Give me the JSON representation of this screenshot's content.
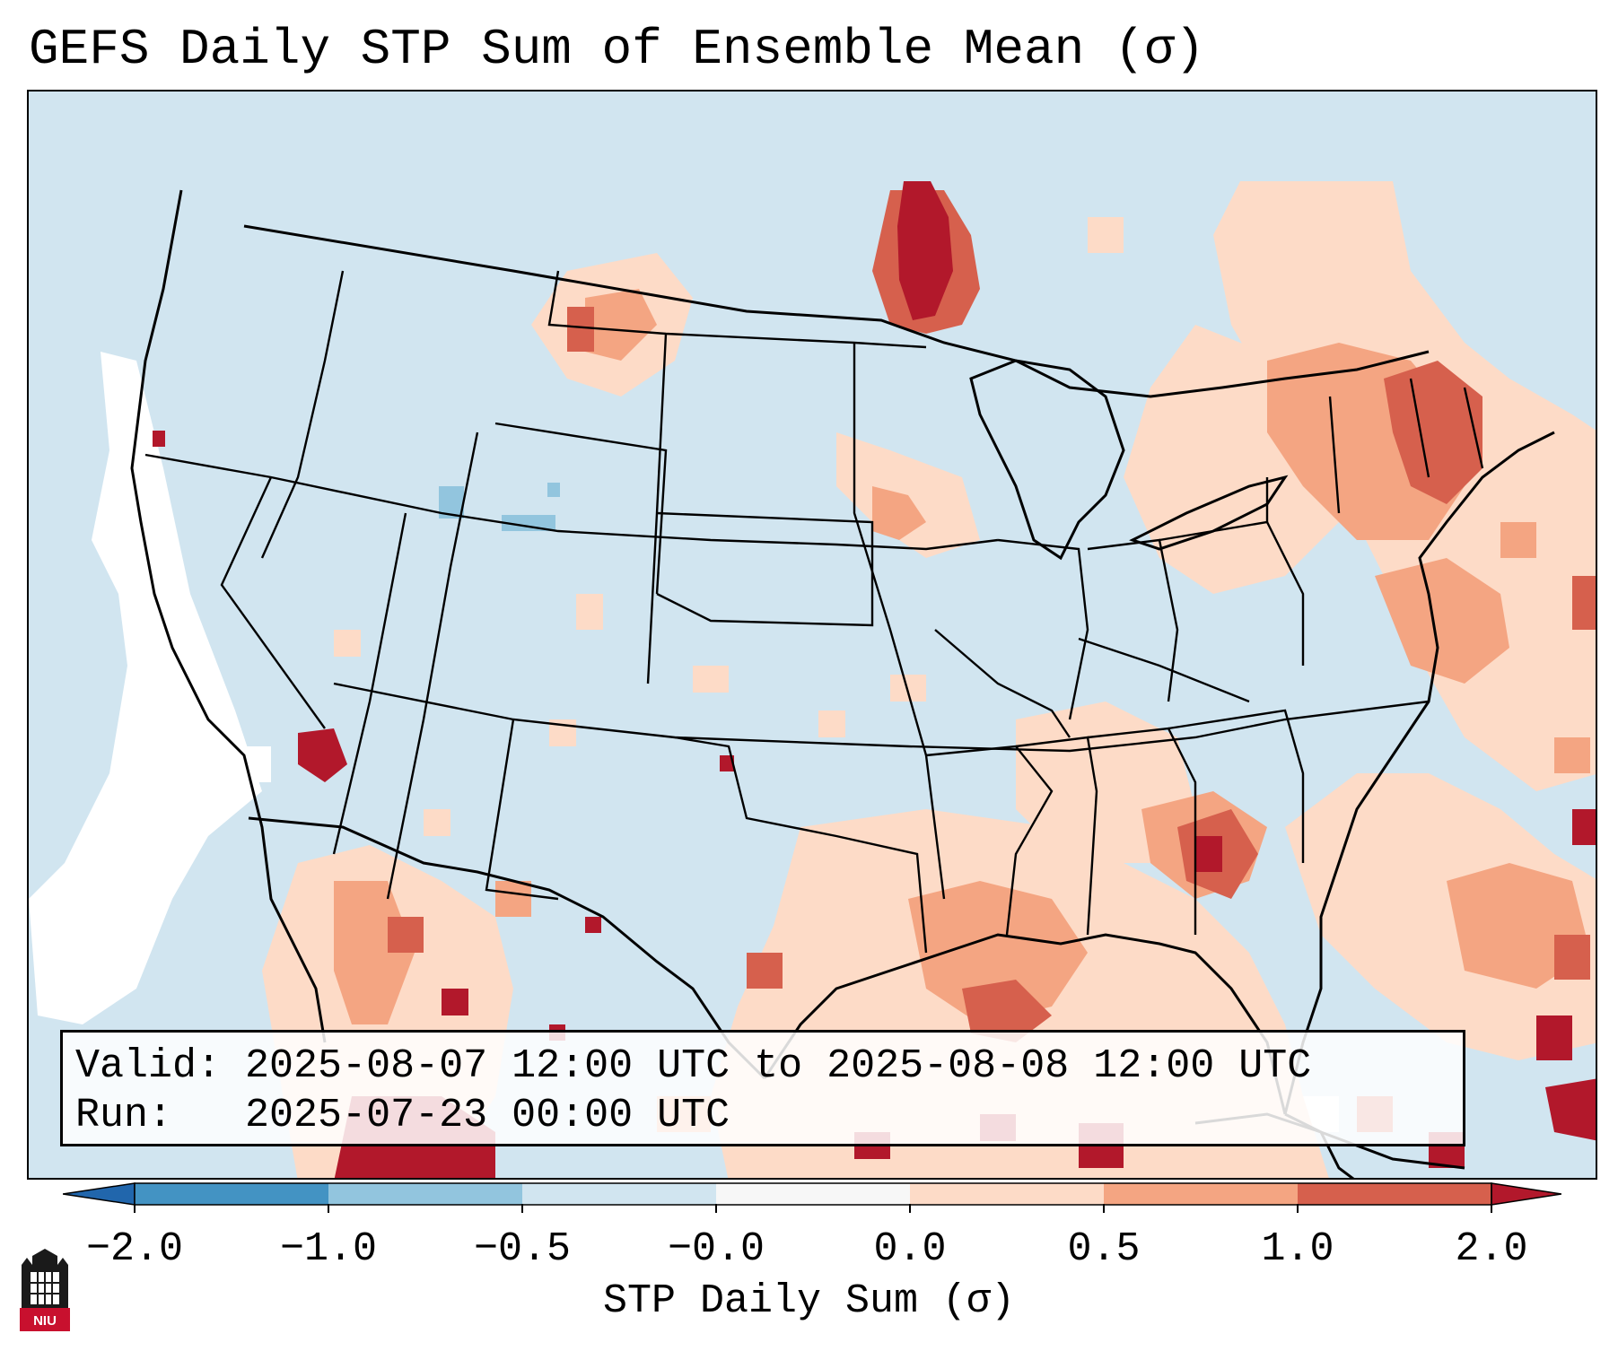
{
  "title": "GEFS Daily STP Sum of Ensemble Mean (σ)",
  "info": {
    "valid_label": "Valid:",
    "valid_value": "2025-08-07 12:00 UTC to 2025-08-08 12:00 UTC",
    "run_label": "Run:",
    "run_value": "2025-07-23 00:00 UTC"
  },
  "colorbar": {
    "label": "STP Daily Sum (σ)",
    "tick_labels": [
      "−2.0",
      "−1.0",
      "−0.5",
      "−0.0",
      "0.0",
      "0.5",
      "1.0",
      "2.0"
    ],
    "bins": [
      {
        "range": "-2.0 to -1.0",
        "color": "#4393c3"
      },
      {
        "range": "-1.0 to -0.5",
        "color": "#92c5de"
      },
      {
        "range": "-0.5 to -0.0",
        "color": "#d1e5f0"
      },
      {
        "range": "-0.0 to 0.0",
        "color": "#f7f7f7"
      },
      {
        "range": "0.0 to 0.5",
        "color": "#fddbc7"
      },
      {
        "range": "0.5 to 1.0",
        "color": "#f4a582"
      },
      {
        "range": "1.0 to 2.0",
        "color": "#d6604d"
      }
    ],
    "under_color": "#2166ac",
    "over_color": "#b2182b"
  },
  "logo": {
    "text": "NIU",
    "icon": "university-tower-icon"
  },
  "colors": {
    "background": "#d1e5f0",
    "neutral": "#ffffff",
    "light_pos": "#fddbc7",
    "mid_pos": "#f4a582",
    "high_pos": "#d6604d",
    "max_pos": "#b2182b",
    "neg": "#92c5de"
  }
}
